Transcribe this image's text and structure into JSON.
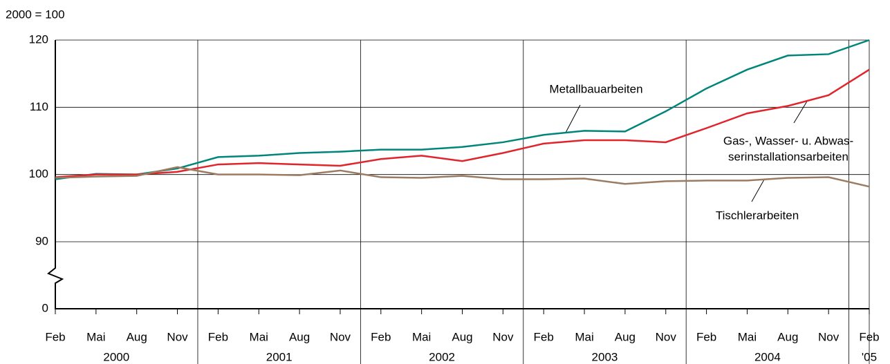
{
  "chart_data": {
    "type": "line",
    "y_label": "2000 = 100",
    "categories": [
      "Feb",
      "Mai",
      "Aug",
      "Nov",
      "Feb",
      "Mai",
      "Aug",
      "Nov",
      "Feb",
      "Mai",
      "Aug",
      "Nov",
      "Feb",
      "Mai",
      "Aug",
      "Nov",
      "Feb",
      "Mai",
      "Aug",
      "Nov",
      "Feb"
    ],
    "years": [
      "2000",
      "2001",
      "2002",
      "2003",
      "2004",
      "'05"
    ],
    "ylim": [
      0,
      120
    ],
    "y_break": [
      0,
      90
    ],
    "yticks": [
      0,
      90,
      100,
      110,
      120
    ],
    "grid": true,
    "series": [
      {
        "label_lines": [
          "Metallbauarbeiten"
        ],
        "color": "#00857a",
        "values": [
          99.3,
          100.1,
          100,
          100.9,
          102.6,
          102.8,
          103.2,
          103.4,
          103.7,
          103.7,
          104.1,
          104.8,
          105.9,
          106.5,
          106.4,
          109.4,
          112.8,
          115.6,
          117.7,
          117.9,
          120
        ]
      },
      {
        "label_lines": [
          "Gas-, Wasser- u. Abwas-",
          "serinstallationsarbeiten"
        ],
        "color": "#e0242a",
        "values": [
          99.6,
          100,
          100,
          100.4,
          101.5,
          101.7,
          101.5,
          101.3,
          102.3,
          102.8,
          102,
          103.2,
          104.6,
          105.1,
          105.1,
          104.8,
          106.9,
          109.1,
          110.2,
          111.8,
          115.6
        ]
      },
      {
        "label_lines": [
          "Tischlerarbeiten"
        ],
        "color": "#9b7b62",
        "values": [
          99.5,
          99.7,
          99.8,
          101.1,
          100,
          100,
          99.9,
          100.6,
          99.6,
          99.5,
          99.8,
          99.3,
          99.3,
          99.4,
          98.6,
          99,
          99.1,
          99.1,
          99.5,
          99.6,
          98.2
        ]
      }
    ]
  }
}
